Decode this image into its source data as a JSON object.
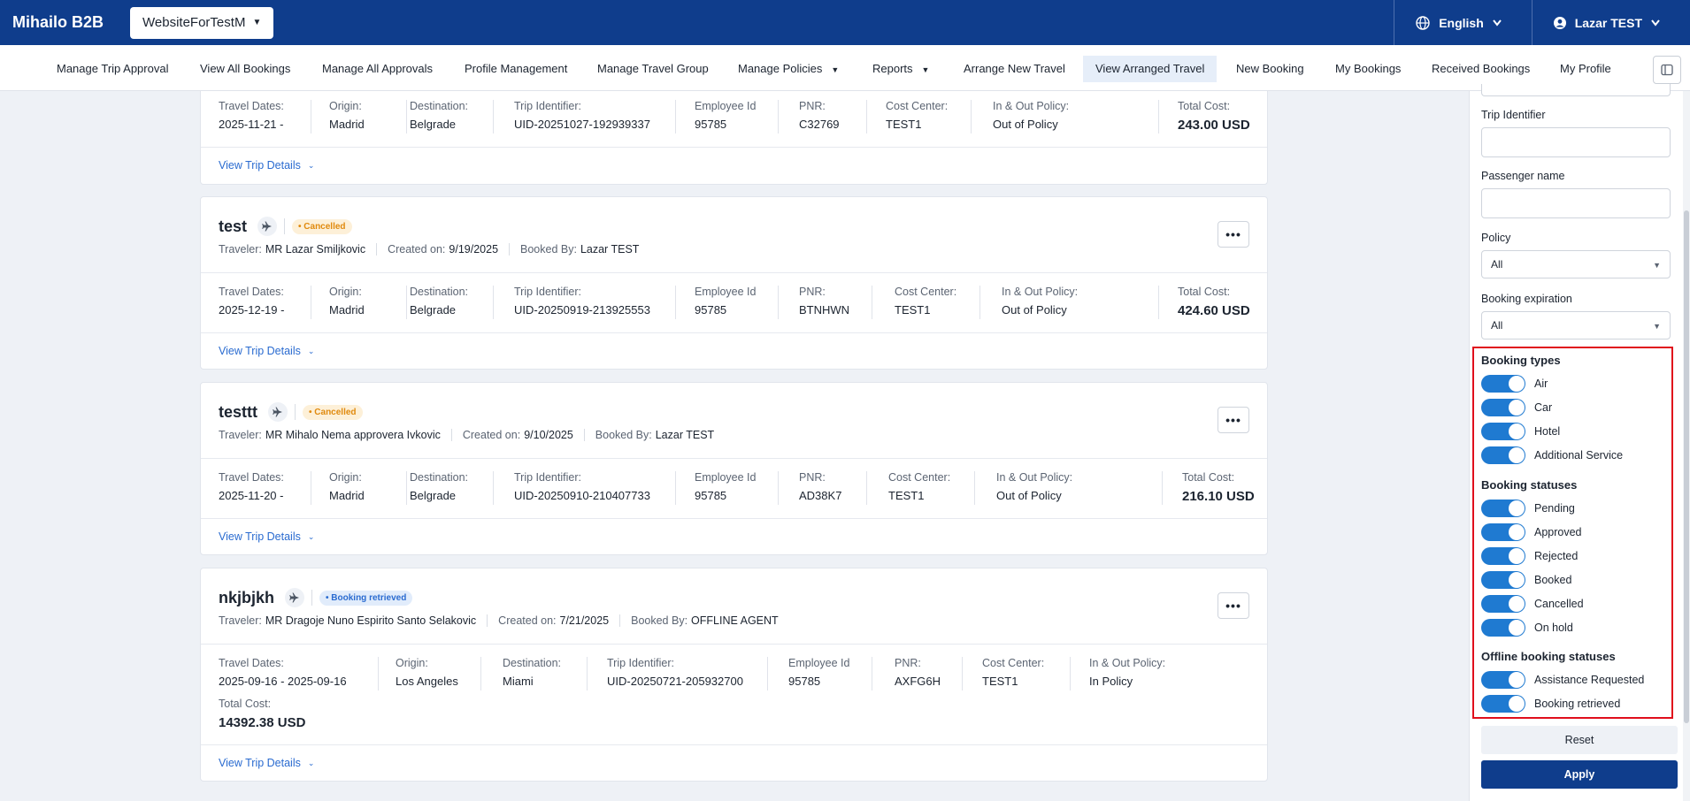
{
  "app": {
    "brand": "Mihailo B2B",
    "site": "WebsiteForTestM",
    "language": "English",
    "user": "Lazar TEST"
  },
  "nav": [
    {
      "label": "Manage Trip Approval"
    },
    {
      "label": "View All Bookings"
    },
    {
      "label": "Manage All Approvals"
    },
    {
      "label": "Profile Management"
    },
    {
      "label": "Manage Travel Group"
    },
    {
      "label": "Manage Policies"
    },
    {
      "label": "Reports"
    },
    {
      "label": "Arrange New Travel"
    },
    {
      "label": "View Arranged Travel"
    },
    {
      "label": "New Booking"
    },
    {
      "label": "My Bookings"
    },
    {
      "label": "Received Bookings"
    },
    {
      "label": "My Profile"
    }
  ],
  "labels": {
    "traveler": "Traveler:",
    "created_on": "Created on:",
    "booked_by": "Booked By:",
    "travel_dates": "Travel Dates:",
    "origin": "Origin:",
    "destination": "Destination:",
    "trip_identifier": "Trip Identifier:",
    "employee_id": "Employee Id",
    "pnr": "PNR:",
    "cost_center": "Cost Center:",
    "policy": "In & Out Policy:",
    "total_cost": "Total Cost:",
    "view_details": "View Trip Details"
  },
  "cards": [
    {
      "travel_dates": "2025-11-21 -",
      "origin": "Madrid",
      "destination": "Belgrade",
      "trip_identifier": "UID-20251027-192939337",
      "employee_id": "95785",
      "pnr": "C32769",
      "cost_center": "TEST1",
      "policy": "Out of Policy",
      "total_cost": "243.00 USD"
    },
    {
      "name": "test",
      "status": "• Cancelled",
      "traveler": "MR Lazar Smiljkovic",
      "created_on": "9/19/2025",
      "booked_by": "Lazar TEST",
      "travel_dates": "2025-12-19 -",
      "origin": "Madrid",
      "destination": "Belgrade",
      "trip_identifier": "UID-20250919-213925553",
      "employee_id": "95785",
      "pnr": "BTNHWN",
      "cost_center": "TEST1",
      "policy": "Out of Policy",
      "total_cost": "424.60 USD"
    },
    {
      "name": "testtt",
      "status": "• Cancelled",
      "traveler": "MR Mihalo Nema approvera Ivkovic",
      "created_on": "9/10/2025",
      "booked_by": "Lazar TEST",
      "travel_dates": "2025-11-20 -",
      "origin": "Madrid",
      "destination": "Belgrade",
      "trip_identifier": "UID-20250910-210407733",
      "employee_id": "95785",
      "pnr": "AD38K7",
      "cost_center": "TEST1",
      "policy": "Out of Policy",
      "total_cost": "216.10 USD"
    },
    {
      "name": "nkjbjkh",
      "status": "• Booking retrieved",
      "traveler": "MR Dragoje Nuno Espirito Santo Selakovic",
      "created_on": "7/21/2025",
      "booked_by": "OFFLINE AGENT",
      "travel_dates": "2025-09-16 - 2025-09-16",
      "origin": "Los Angeles",
      "destination": "Miami",
      "trip_identifier": "UID-20250721-205932700",
      "employee_id": "95785",
      "pnr": "AXFG6H",
      "cost_center": "TEST1",
      "policy": "In Policy",
      "total_cost": "14392.38 USD"
    }
  ],
  "filters": {
    "trip_identifier_label": "Trip Identifier",
    "passenger_label": "Passenger name",
    "policy_label": "Policy",
    "policy_value": "All",
    "expiration_label": "Booking expiration",
    "expiration_value": "All",
    "booking_types_title": "Booking types",
    "booking_types": [
      "Air",
      "Car",
      "Hotel",
      "Additional Service"
    ],
    "booking_statuses_title": "Booking statuses",
    "booking_statuses": [
      "Pending",
      "Approved",
      "Rejected",
      "Booked",
      "Cancelled",
      "On hold"
    ],
    "offline_title": "Offline booking statuses",
    "offline_statuses": [
      "Assistance Requested",
      "Booking retrieved"
    ],
    "reset": "Reset",
    "apply": "Apply"
  }
}
